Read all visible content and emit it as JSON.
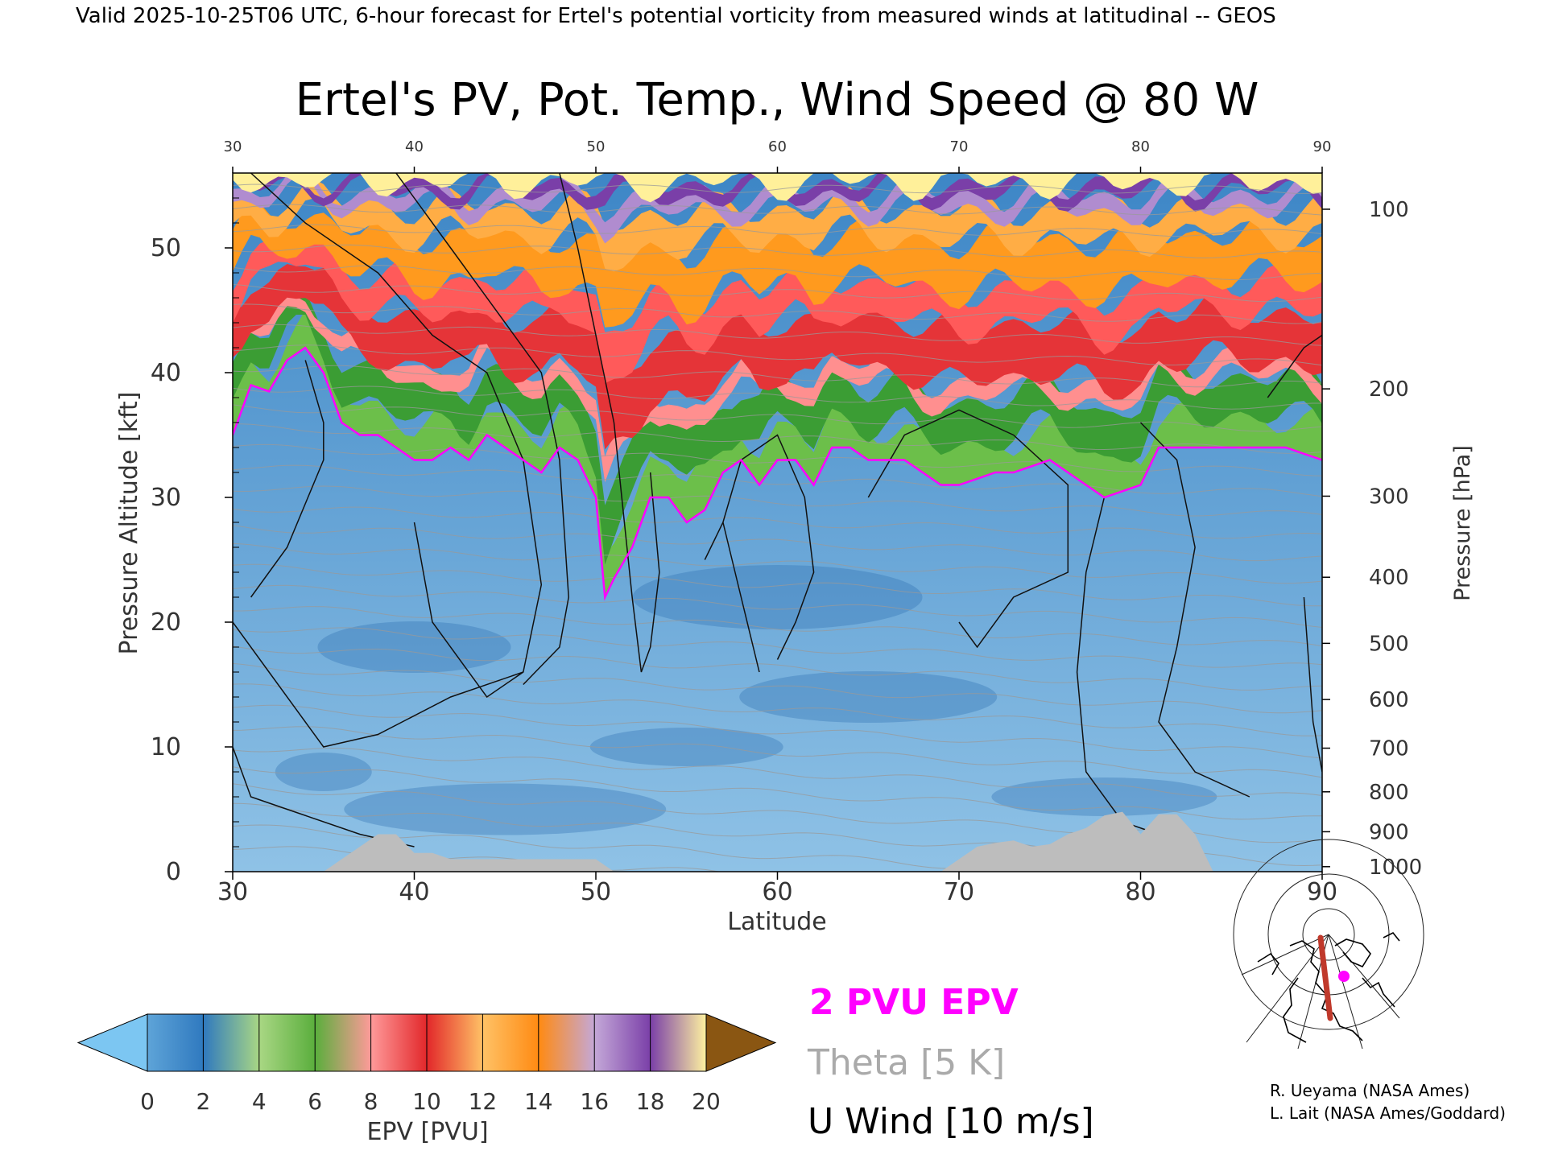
{
  "header": {
    "valid_line": "Valid 2025-10-25T06 UTC, 6-hour forecast for Ertel's potential vorticity from measured winds at latitudinal -- GEOS"
  },
  "chart_data": {
    "type": "heatmap",
    "title": "Ertel's PV, Pot. Temp., Wind Speed @ 80 W",
    "xlabel": "Latitude",
    "ylabel_left": "Pressure Altitude [kft]",
    "ylabel_right": "Pressure [hPa]",
    "xlim": [
      30,
      90
    ],
    "ylim": [
      0,
      56
    ],
    "x_ticks": [
      30,
      40,
      50,
      60,
      70,
      80,
      90
    ],
    "y_ticks_left": [
      0,
      10,
      20,
      30,
      40,
      50
    ],
    "y_ticks_right": [
      {
        "label": "100",
        "kft": 53.1
      },
      {
        "label": "200",
        "kft": 38.7
      },
      {
        "label": "300",
        "kft": 30.1
      },
      {
        "label": "400",
        "kft": 23.6
      },
      {
        "label": "500",
        "kft": 18.3
      },
      {
        "label": "600",
        "kft": 13.8
      },
      {
        "label": "700",
        "kft": 9.9
      },
      {
        "label": "800",
        "kft": 6.4
      },
      {
        "label": "900",
        "kft": 3.2
      },
      {
        "label": "1000",
        "kft": 0.4
      }
    ],
    "grid": false,
    "colorbar": {
      "label": "EPV [PVU]",
      "ticks": [
        0,
        2,
        4,
        6,
        8,
        10,
        12,
        14,
        16,
        18,
        20
      ],
      "under_color": "#7cc6f2",
      "over_color": "#8a5612",
      "colors": [
        "#5ea4d8",
        "#2f79bf",
        "#a9d784",
        "#5aae3c",
        "#ff9a9a",
        "#e2272a",
        "#ffc266",
        "#ff8a12",
        "#c4a8d8",
        "#7a3fa8",
        "#fff3a0",
        "#c8933c"
      ]
    },
    "pv_2pvu_tropopause": {
      "lat": [
        30,
        31,
        32,
        33,
        34,
        35,
        36,
        37,
        38,
        39,
        40,
        41,
        42,
        43,
        44,
        45,
        46,
        47,
        48,
        49,
        50,
        50.5,
        51,
        52,
        53,
        54,
        55,
        56,
        57,
        58,
        59,
        60,
        61,
        62,
        63,
        64,
        65,
        66,
        67,
        68,
        69,
        70,
        71,
        72,
        73,
        74,
        75,
        76,
        77,
        78,
        79,
        80,
        81,
        82,
        83,
        84,
        85,
        86,
        87,
        88,
        89,
        90
      ],
      "kft": [
        35,
        39,
        38.5,
        41,
        42,
        40,
        36,
        35,
        35,
        34,
        33,
        33,
        34,
        33,
        35,
        34,
        33,
        32,
        34,
        33,
        30,
        22,
        23.5,
        26,
        30,
        30,
        28,
        29,
        32,
        33,
        31,
        33,
        33,
        31,
        34,
        34,
        33,
        33,
        33,
        32,
        31,
        31,
        31.5,
        32,
        32,
        32.5,
        33,
        32,
        31,
        30,
        30.5,
        31,
        34,
        34,
        34,
        34,
        34,
        34,
        34,
        34,
        33.5,
        33
      ]
    },
    "terrain_surface": {
      "lat": [
        30,
        35,
        36,
        37,
        38,
        39,
        40,
        41,
        42,
        44,
        46,
        48,
        50,
        51,
        69,
        70,
        71,
        72,
        73,
        74,
        75,
        76,
        77,
        78,
        79,
        80,
        81,
        82,
        83,
        84,
        90
      ],
      "kft": [
        0,
        0,
        1,
        2,
        3,
        3,
        1.5,
        1.5,
        1,
        1,
        1,
        1,
        1,
        0,
        0,
        1,
        2,
        2.3,
        2.5,
        2,
        2.2,
        3,
        3.5,
        4.5,
        4.8,
        3,
        4.6,
        4.6,
        3,
        0,
        0
      ]
    },
    "legend": [
      "2 PVU EPV",
      "Theta [5 K]",
      "U Wind [10 m/s]"
    ],
    "legend_colors": [
      "#ff00ff",
      "#aaaaaa",
      "#000000"
    ]
  },
  "credits": {
    "line1": "R. Ueyama (NASA Ames)",
    "line2": "L. Lait (NASA Ames/Goddard)"
  },
  "inset_map": {
    "marker_color": "#ff00ff",
    "transect_color": "#c0392b"
  }
}
